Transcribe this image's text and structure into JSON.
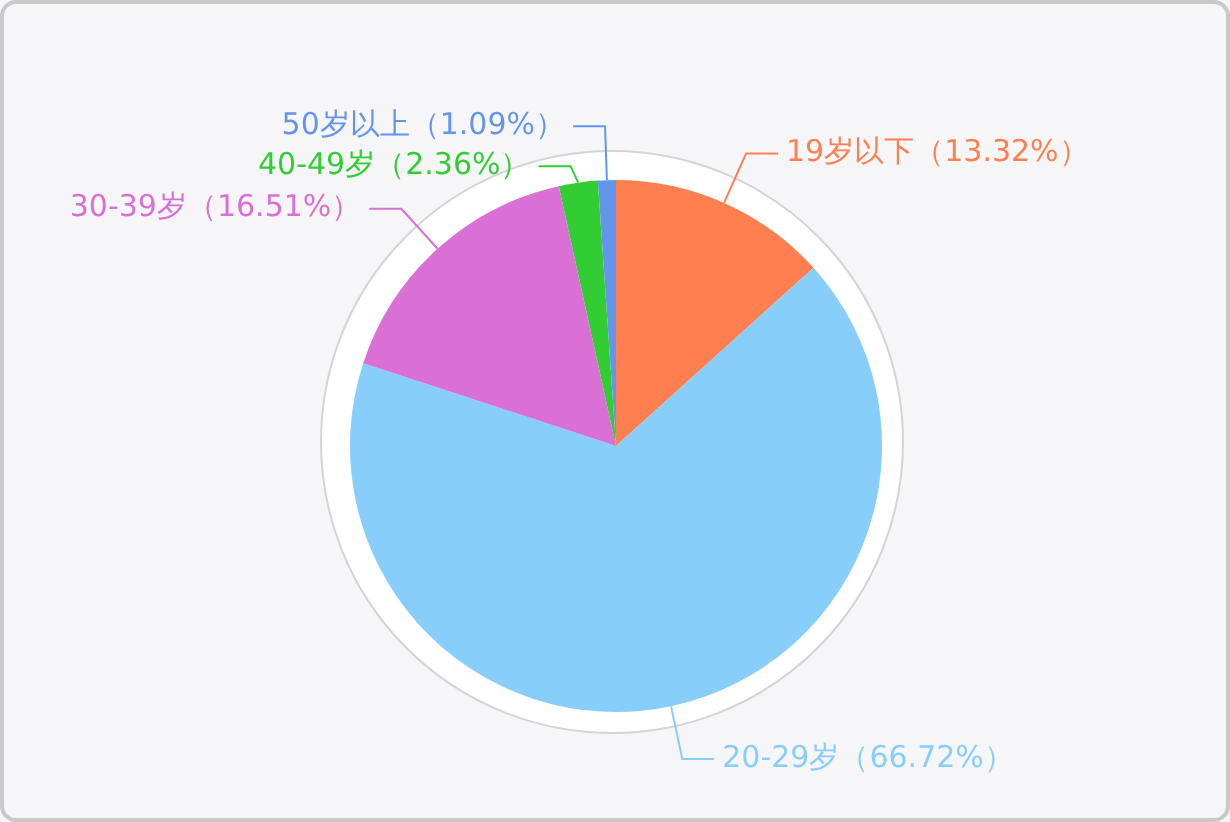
{
  "chart_data": {
    "type": "pie",
    "categories": [
      "19岁以下",
      "20-29岁",
      "30-39岁",
      "40-49岁",
      "50岁以上"
    ],
    "values": [
      13.32,
      66.72,
      16.51,
      2.36,
      1.09
    ],
    "colors": [
      "#ff7f50",
      "#87cefa",
      "#da70d6",
      "#32cd32",
      "#6495ed"
    ],
    "value_labels": [
      "（13.32%）",
      "（66.72%）",
      "（16.51%）",
      "（2.36%）",
      "（1.09%）"
    ]
  }
}
